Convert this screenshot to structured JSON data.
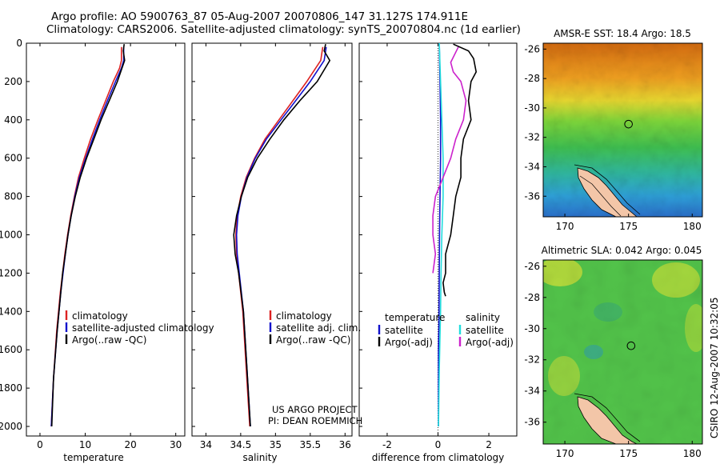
{
  "header": {
    "title_line1": "Argo profile: AO 5900763_87 05-Aug-2007 20070806_147 31.127S 174.911E",
    "title_line2": "Climatology: CARS2006. Satellite-adjusted climatology: synTS_20070804.nc (1d earlier)"
  },
  "credits": {
    "line1": "US ARGO PROJECT",
    "line2": "PI: DEAN ROEMMICH",
    "side_stamp": "CSIRO 12-Aug-2007 10:32:05"
  },
  "colors": {
    "climatology": "#dd2222",
    "satellite": "#1111cc",
    "argo": "#000000",
    "salinity_satellite": "#22dddd",
    "salinity_argo": "#cc22cc"
  },
  "chart_data": [
    {
      "type": "line",
      "xlabel": "temperature",
      "ylabel": "",
      "xlim": [
        -3,
        32
      ],
      "ylim": [
        2050,
        0
      ],
      "x_ticks": [
        "0",
        "10",
        "20",
        "30"
      ],
      "y_ticks": [
        "0",
        "200",
        "400",
        "600",
        "800",
        "1000",
        "1200",
        "1400",
        "1600",
        "1800",
        "2000"
      ],
      "legend": {
        "placement": "lower-right",
        "entries": [
          "climatology",
          "satellite-adjusted climatology",
          "Argo(..raw -QC)"
        ]
      },
      "series": [
        {
          "name": "climatology",
          "color": "#dd2222",
          "x": [
            18.0,
            18.0,
            17.6,
            16.2,
            14.5,
            12.8,
            11.2,
            9.8,
            8.5,
            7.6,
            6.8,
            6.1,
            5.5,
            5.0,
            4.5,
            3.7,
            3.0,
            2.5
          ],
          "y": [
            20,
            90,
            130,
            200,
            300,
            400,
            500,
            600,
            700,
            800,
            900,
            1000,
            1100,
            1200,
            1300,
            1500,
            1750,
            2000
          ]
        },
        {
          "name": "satellite-adjusted climatology",
          "color": "#1111cc",
          "x": [
            18.5,
            18.5,
            18.0,
            16.7,
            14.9,
            13.2,
            11.6,
            10.1,
            8.7,
            7.7,
            6.9,
            6.2,
            5.6,
            5.1,
            4.6,
            3.8,
            3.0,
            2.5
          ],
          "y": [
            20,
            90,
            130,
            200,
            300,
            400,
            500,
            600,
            700,
            800,
            900,
            1000,
            1100,
            1200,
            1300,
            1500,
            1750,
            2000
          ]
        },
        {
          "name": "Argo(..raw -QC)",
          "color": "#000000",
          "x": [
            18.6,
            18.4,
            18.7,
            17.1,
            15.3,
            13.5,
            11.9,
            10.3,
            8.9,
            7.8,
            6.9,
            6.2,
            5.6,
            5.0,
            4.6,
            3.8,
            3.0,
            2.6
          ],
          "y": [
            5,
            40,
            90,
            200,
            300,
            400,
            500,
            600,
            700,
            800,
            900,
            1000,
            1100,
            1200,
            1300,
            1500,
            1750,
            2000
          ]
        }
      ]
    },
    {
      "type": "line",
      "xlabel": "salinity",
      "ylabel": "",
      "xlim": [
        33.8,
        36.1
      ],
      "ylim": [
        2050,
        0
      ],
      "x_ticks": [
        "34",
        "34.5",
        "35",
        "35.5",
        "36"
      ],
      "legend": {
        "placement": "lower-right",
        "entries": [
          "climatology",
          "satellite adj. clim.",
          "Argo(..raw -QC)"
        ]
      },
      "series": [
        {
          "name": "climatology",
          "color": "#dd2222",
          "x": [
            35.68,
            35.65,
            35.45,
            35.25,
            35.05,
            34.85,
            34.7,
            34.58,
            34.5,
            34.45,
            34.43,
            34.44,
            34.47,
            34.53,
            34.58,
            34.63
          ],
          "y": [
            20,
            90,
            200,
            300,
            400,
            500,
            600,
            700,
            800,
            900,
            1000,
            1100,
            1200,
            1400,
            1700,
            2000
          ]
        },
        {
          "name": "satellite adj. clim.",
          "color": "#1111cc",
          "x": [
            35.73,
            35.7,
            35.5,
            35.29,
            35.08,
            34.87,
            34.71,
            34.59,
            34.51,
            34.46,
            34.44,
            34.45,
            34.48,
            34.54,
            34.59,
            34.64
          ],
          "y": [
            20,
            90,
            200,
            300,
            400,
            500,
            600,
            700,
            800,
            900,
            1000,
            1100,
            1200,
            1400,
            1700,
            2000
          ]
        },
        {
          "name": "Argo(..raw -QC)",
          "color": "#000000",
          "x": [
            35.72,
            35.7,
            35.78,
            35.6,
            35.35,
            35.12,
            34.92,
            34.74,
            34.6,
            34.51,
            34.44,
            34.4,
            34.42,
            34.47,
            34.54,
            34.59,
            34.64
          ],
          "y": [
            5,
            40,
            90,
            200,
            300,
            400,
            500,
            600,
            700,
            800,
            900,
            1000,
            1100,
            1200,
            1400,
            1700,
            2000
          ]
        }
      ]
    },
    {
      "type": "line",
      "xlabel": "difference from climatology",
      "ylabel": "",
      "xlim": [
        -3.1,
        3.1
      ],
      "ylim": [
        2050,
        0
      ],
      "x_ticks": [
        "-2",
        "0",
        "2"
      ],
      "legend": {
        "placement": "lower-center",
        "temperature_header": "temperature",
        "temperature_entries": [
          "satellite",
          "Argo(-adj)"
        ],
        "salinity_header": "salinity",
        "salinity_entries": [
          "satellite",
          "Argo(-adj)"
        ]
      },
      "series": [
        {
          "name": "temperature satellite",
          "color": "#1111cc",
          "x": [
            0.05,
            0.08,
            0.1,
            0.1,
            0.08,
            0.06,
            0.05,
            0.04,
            0.03,
            0.02,
            0.02,
            0.02,
            0.02,
            0.02
          ],
          "y": [
            0,
            200,
            400,
            600,
            800,
            1000,
            1200,
            1400,
            1500,
            1600,
            1700,
            1800,
            1900,
            2000
          ]
        },
        {
          "name": "temperature Argo(-adj)",
          "color": "#000000",
          "x": [
            0.6,
            1.2,
            1.4,
            1.5,
            1.3,
            1.2,
            1.3,
            1.0,
            0.9,
            0.9,
            0.7,
            0.6,
            0.5,
            0.3,
            0.3,
            0.2,
            0.25,
            0.3
          ],
          "y": [
            5,
            40,
            80,
            150,
            200,
            300,
            400,
            500,
            600,
            700,
            800,
            900,
            1000,
            1100,
            1200,
            1250,
            1300,
            1320
          ]
        },
        {
          "name": "salinity satellite",
          "color": "#22dddd",
          "x": [
            0.05,
            0.1,
            0.15,
            0.2,
            0.2,
            0.15,
            0.12,
            0.1,
            0.05,
            0.02
          ],
          "y": [
            0,
            200,
            400,
            600,
            800,
            1000,
            1200,
            1400,
            1700,
            2000
          ]
        },
        {
          "name": "salinity Argo(-adj)",
          "color": "#cc22cc",
          "x": [
            0.8,
            0.5,
            0.6,
            0.9,
            1.1,
            1.0,
            0.7,
            0.5,
            0.2,
            -0.1,
            -0.2,
            -0.2,
            -0.1,
            -0.2
          ],
          "y": [
            20,
            100,
            150,
            200,
            300,
            400,
            500,
            600,
            700,
            800,
            900,
            1000,
            1100,
            1200
          ]
        }
      ]
    },
    {
      "type": "heatmap",
      "title": "AMSR-E SST: 18.4 Argo: 18.5",
      "x_ticks": [
        "170",
        "175",
        "180"
      ],
      "y_ticks": [
        "-26",
        "-28",
        "-30",
        "-32",
        "-34",
        "-36"
      ],
      "xlim": [
        168.3,
        180.8
      ],
      "ylim": [
        -37.4,
        -25.6
      ],
      "argo_marker": {
        "lon": 175.0,
        "lat": -31.1
      }
    },
    {
      "type": "heatmap",
      "title": "Altimetric SLA: 0.042 Argo: 0.045",
      "x_ticks": [
        "170",
        "175",
        "180"
      ],
      "y_ticks": [
        "-26",
        "-28",
        "-30",
        "-32",
        "-34",
        "-36"
      ],
      "xlim": [
        168.3,
        180.8
      ],
      "ylim": [
        -37.4,
        -25.6
      ],
      "argo_marker": {
        "lon": 175.2,
        "lat": -31.1
      }
    }
  ]
}
